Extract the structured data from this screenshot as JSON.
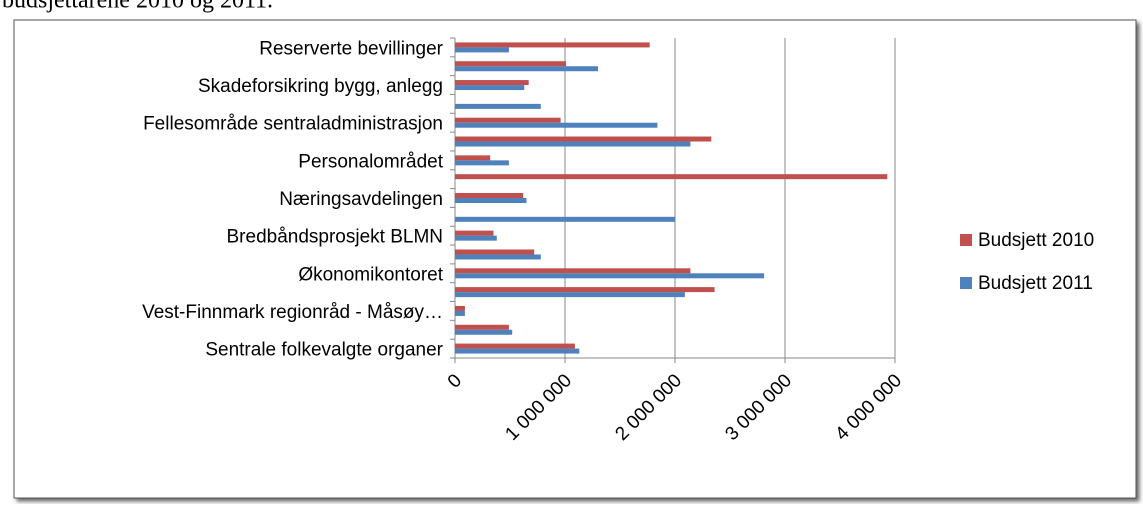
{
  "caption": "budsjettårene 2010 og 2011.",
  "chart_data": {
    "type": "hbar",
    "categories": [
      "Reserverte bevillinger",
      null,
      "Skadeforsikring bygg, anlegg",
      null,
      "Fellesområde sentraladministrasjon",
      null,
      "Personalområdet",
      null,
      "Næringsavdelingen",
      null,
      "Bredbåndsprosjekt BLMN",
      null,
      "Økonomikontoret",
      null,
      "Vest-Finnmark regionråd - Måsøy…",
      null,
      "Sentrale folkevalgte organer"
    ],
    "series": [
      {
        "name": "Budsjett 2010",
        "color": "#c0504d",
        "values": [
          1770000,
          1010000,
          670000,
          0,
          960000,
          2330000,
          320000,
          3930000,
          620000,
          0,
          350000,
          720000,
          2140000,
          2360000,
          90000,
          490000,
          1090000
        ]
      },
      {
        "name": "Budsjett 2011",
        "color": "#4f81bd",
        "values": [
          490000,
          1300000,
          630000,
          780000,
          1840000,
          2140000,
          490000,
          0,
          650000,
          2000000,
          380000,
          780000,
          2810000,
          2090000,
          90000,
          520000,
          1130000
        ]
      }
    ],
    "xlim": [
      0,
      4000000
    ],
    "xticks": [
      0,
      {
        "value": 1000000,
        "label": "1 000 000"
      },
      {
        "value": 2000000,
        "label": "2 000 000"
      },
      {
        "value": 3000000,
        "label": "3 000 000"
      },
      {
        "value": 4000000,
        "label": "4 000 000"
      }
    ],
    "grid": true,
    "legend": "right"
  }
}
